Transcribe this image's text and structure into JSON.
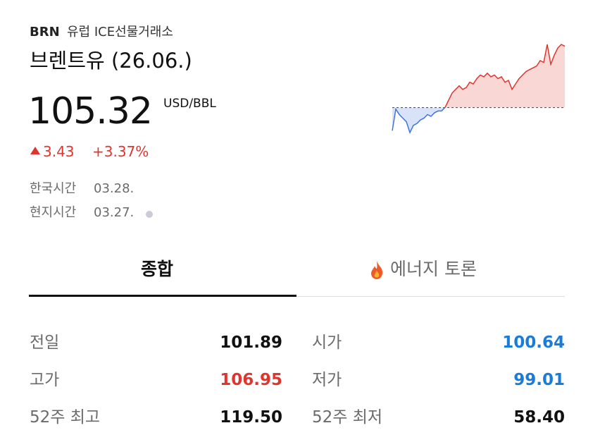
{
  "header": {
    "ticker": "BRN",
    "exchange": "유럽 ICE선물거래소",
    "title": "브렌트유 (26.06.)"
  },
  "quote": {
    "price": "105.32",
    "unit": "USD/BBL",
    "change": "3.43",
    "change_pct": "+3.37%",
    "korea_time_label": "한국시간",
    "korea_time": "03.28.",
    "local_time_label": "현지시간",
    "local_time": "03.27."
  },
  "sparkline": {
    "baseline": 101.89,
    "up_color": "#e0352e",
    "down_color": "#3d74e0",
    "values": [
      100.6,
      101.8,
      101.5,
      101.3,
      101.1,
      100.5,
      100.9,
      101.0,
      101.2,
      101.3,
      101.5,
      101.4,
      101.6,
      101.7,
      101.7,
      101.9,
      102.3,
      102.7,
      102.9,
      103.1,
      102.9,
      103.0,
      103.3,
      103.2,
      103.5,
      103.7,
      103.6,
      103.8,
      103.6,
      103.7,
      103.5,
      103.6,
      103.3,
      103.4,
      102.9,
      103.2,
      103.5,
      103.7,
      103.9,
      104.0,
      104.1,
      104.2,
      104.5,
      104.4,
      105.4,
      104.3,
      104.8,
      105.2,
      105.4,
      105.3
    ]
  },
  "tabs": [
    "종합",
    "에너지 토론"
  ],
  "stats": {
    "rows": [
      [
        {
          "label": "전일",
          "value": "101.89",
          "color": "#111111"
        },
        {
          "label": "시가",
          "value": "100.64",
          "color": "#1a7cd6"
        }
      ],
      [
        {
          "label": "고가",
          "value": "106.95",
          "color": "#e0352e"
        },
        {
          "label": "저가",
          "value": "99.01",
          "color": "#1a7cd6"
        }
      ],
      [
        {
          "label": "52주 최고",
          "value": "119.50",
          "color": "#111111"
        },
        {
          "label": "52주 최저",
          "value": "58.40",
          "color": "#111111"
        }
      ]
    ]
  }
}
